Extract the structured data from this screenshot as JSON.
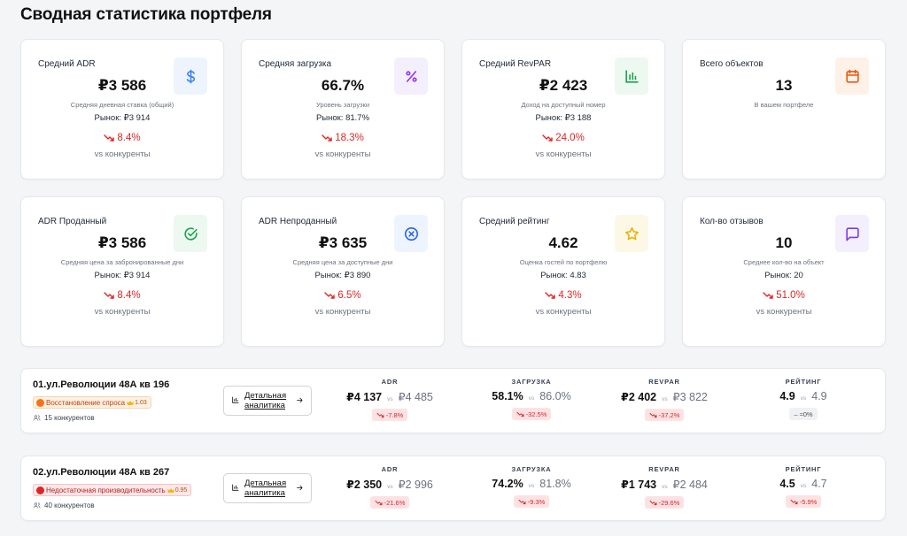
{
  "page": {
    "title": "Сводная статистика портфеля"
  },
  "kpis": [
    {
      "label": "Средний ADR",
      "value": "₽3 586",
      "sub": "Средняя дневная ставка (общий)",
      "market": "Рынок: ₽3 914",
      "change": "8.4%",
      "vs": "vs конкуренты",
      "icon": "dollar-icon",
      "icon_color": "#3b82f6",
      "icon_bg": "#eef4fe"
    },
    {
      "label": "Средняя загрузка",
      "value": "66.7%",
      "sub": "Уровень загрузки",
      "market": "Рынок: 81.7%",
      "change": "18.3%",
      "vs": "vs конкуренты",
      "icon": "percent-icon",
      "icon_color": "#9333ea",
      "icon_bg": "#f4effc"
    },
    {
      "label": "Средний RevPAR",
      "value": "₽2 423",
      "sub": "Доход на доступный номер",
      "market": "Рынок: ₽3 188",
      "change": "24.0%",
      "vs": "vs конкуренты",
      "icon": "bar-chart-icon",
      "icon_color": "#16a34a",
      "icon_bg": "#ecf8f0"
    },
    {
      "label": "Всего объектов",
      "value": "13",
      "sub": "В вашем портфеле",
      "market": "",
      "change": "",
      "vs": "",
      "icon": "calendar-icon",
      "icon_color": "#ea580c",
      "icon_bg": "#fdf1e8"
    },
    {
      "label": "ADR Проданный",
      "value": "₽3 586",
      "sub": "Средняя цена за забронированные дни",
      "market": "Рынок: ₽3 914",
      "change": "8.4%",
      "vs": "vs конкуренты",
      "icon": "check-circle-icon",
      "icon_color": "#16a34a",
      "icon_bg": "#ecf8f0"
    },
    {
      "label": "ADR Непроданный",
      "value": "₽3 635",
      "sub": "Средняя цена за доступные дни",
      "market": "Рынок: ₽3 890",
      "change": "6.5%",
      "vs": "vs конкуренты",
      "icon": "x-circle-icon",
      "icon_color": "#2563eb",
      "icon_bg": "#eef4fe"
    },
    {
      "label": "Средний рейтинг",
      "value": "4.62",
      "sub": "Оценка гостей по портфелю",
      "market": "Рынок: 4.83",
      "change": "4.3%",
      "vs": "vs конкуренты",
      "icon": "star-icon",
      "icon_color": "#eab308",
      "icon_bg": "#fdf8e6"
    },
    {
      "label": "Кол-во отзывов",
      "value": "10",
      "sub": "Среднее кол-во на объект",
      "market": "Рынок: 20",
      "change": "51.0%",
      "vs": "vs конкуренты",
      "icon": "message-icon",
      "icon_color": "#7c3aed",
      "icon_bg": "#f3effc"
    }
  ],
  "properties": [
    {
      "name": "01.ул.Революции 48А кв 196",
      "badge": {
        "text": "Восстановление спроса",
        "score": "1.03",
        "variant": "orange",
        "dot_color": "#f97316"
      },
      "competitors": "15 конкурентов",
      "detail_button": "Детальная аналитика",
      "metrics": [
        {
          "label": "ADR",
          "main": "₽4 137",
          "vs": "vs",
          "market": "₽4 485",
          "change": "-7.8%",
          "tone": "red"
        },
        {
          "label": "ЗАГРУЗКА",
          "main": "58.1%",
          "vs": "vs",
          "market": "86.0%",
          "change": "-32.5%",
          "tone": "red"
        },
        {
          "label": "REVPAR",
          "main": "₽2 402",
          "vs": "vs",
          "market": "₽3 822",
          "change": "-37.2%",
          "tone": "red"
        },
        {
          "label": "РЕЙТИНГ",
          "main": "4.9",
          "vs": "vs",
          "market": "4.9",
          "change": "≈0%",
          "tone": "gray"
        }
      ]
    },
    {
      "name": "02.ул.Революции 48А кв 267",
      "badge": {
        "text": "Недостаточная производительность",
        "score": "0.95",
        "variant": "red",
        "dot_color": "#dc2626"
      },
      "competitors": "40 конкурентов",
      "detail_button": "Детальная аналитика",
      "metrics": [
        {
          "label": "ADR",
          "main": "₽2 350",
          "vs": "vs",
          "market": "₽2 996",
          "change": "-21.6%",
          "tone": "red"
        },
        {
          "label": "ЗАГРУЗКА",
          "main": "74.2%",
          "vs": "vs",
          "market": "81.8%",
          "change": "-9.3%",
          "tone": "red"
        },
        {
          "label": "REVPAR",
          "main": "₽1 743",
          "vs": "vs",
          "market": "₽2 484",
          "change": "-29.6%",
          "tone": "red"
        },
        {
          "label": "РЕЙТИНГ",
          "main": "4.5",
          "vs": "vs",
          "market": "4.7",
          "change": "-5.9%",
          "tone": "red"
        }
      ]
    }
  ]
}
